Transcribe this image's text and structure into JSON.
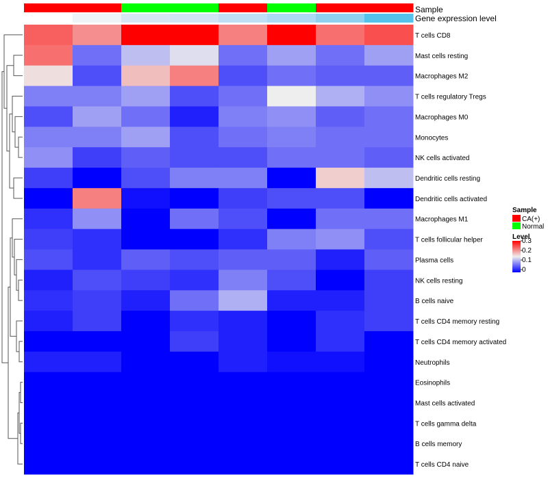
{
  "chart_data": {
    "type": "heatmap",
    "annotation_rows": [
      "Sample",
      "Gene expression level"
    ],
    "sample_groups": [
      "CA(+)",
      "CA(+)",
      "Normal",
      "Normal",
      "CA(+)",
      "Normal",
      "CA(+)",
      "CA(+)"
    ],
    "expression_colors": [
      "#ffffff",
      "#eef3f8",
      "#d6e6f3",
      "#d0e4f4",
      "#bfe0f4",
      "#acdaf4",
      "#8fd0f1",
      "#55c2ec"
    ],
    "rows": [
      "T cells CD8",
      "Mast cells resting",
      "Macrophages M2",
      "T cells regulatory  Tregs",
      "Macrophages M0",
      "Monocytes",
      "NK cells activated",
      "Dendritic cells resting",
      "Dendritic cells activated",
      "Macrophages M1",
      "T cells follicular helper",
      "Plasma cells",
      "NK cells resting",
      "B cells naive",
      "T cells CD4 memory resting",
      "T cells CD4 memory activated",
      "Neutrophils",
      "Eosinophils",
      "Mast cells activated",
      "T cells gamma delta",
      "B cells memory",
      "T cells CD4 naive"
    ],
    "values": [
      [
        0.24,
        0.21,
        0.3,
        0.3,
        0.22,
        0.3,
        0.23,
        0.25
      ],
      [
        0.23,
        0.07,
        0.12,
        0.14,
        0.07,
        0.1,
        0.07,
        0.1
      ],
      [
        0.16,
        0.05,
        0.18,
        0.22,
        0.05,
        0.07,
        0.06,
        0.06
      ],
      [
        0.08,
        0.08,
        0.1,
        0.05,
        0.07,
        0.15,
        0.11,
        0.09
      ],
      [
        0.05,
        0.1,
        0.07,
        0.02,
        0.08,
        0.09,
        0.06,
        0.07
      ],
      [
        0.08,
        0.08,
        0.1,
        0.05,
        0.07,
        0.08,
        0.07,
        0.07
      ],
      [
        0.09,
        0.04,
        0.06,
        0.05,
        0.05,
        0.07,
        0.07,
        0.06
      ],
      [
        0.04,
        0.0,
        0.05,
        0.08,
        0.08,
        0.0,
        0.17,
        0.12
      ],
      [
        0.0,
        0.22,
        0.01,
        0.0,
        0.04,
        0.05,
        0.05,
        0.0
      ],
      [
        0.03,
        0.09,
        0.0,
        0.07,
        0.05,
        0.0,
        0.07,
        0.07
      ],
      [
        0.04,
        0.03,
        0.0,
        0.0,
        0.03,
        0.08,
        0.09,
        0.05
      ],
      [
        0.05,
        0.03,
        0.06,
        0.05,
        0.06,
        0.06,
        0.02,
        0.06
      ],
      [
        0.02,
        0.05,
        0.04,
        0.03,
        0.08,
        0.05,
        0.0,
        0.04
      ],
      [
        0.03,
        0.04,
        0.02,
        0.07,
        0.11,
        0.02,
        0.02,
        0.04
      ],
      [
        0.02,
        0.04,
        0.0,
        0.03,
        0.02,
        0.0,
        0.03,
        0.04
      ],
      [
        0.0,
        0.0,
        0.0,
        0.04,
        0.02,
        0.0,
        0.03,
        0.0
      ],
      [
        0.02,
        0.02,
        0.0,
        0.0,
        0.02,
        0.01,
        0.01,
        0.0
      ],
      [
        0.0,
        0.0,
        0.0,
        0.0,
        0.0,
        0.0,
        0.0,
        0.0
      ],
      [
        0.0,
        0.0,
        0.0,
        0.0,
        0.0,
        0.0,
        0.0,
        0.0
      ],
      [
        0.0,
        0.0,
        0.0,
        0.0,
        0.0,
        0.0,
        0.0,
        0.0
      ],
      [
        0.0,
        0.0,
        0.0,
        0.0,
        0.0,
        0.0,
        0.0,
        0.0
      ],
      [
        0.0,
        0.0,
        0.0,
        0.0,
        0.0,
        0.0,
        0.0,
        0.0
      ]
    ],
    "color_scale": {
      "min": 0,
      "mid": 0.15,
      "max": 0.3,
      "low_color": "#0000ff",
      "mid_color": "#eeeeee",
      "high_color": "#ff0000"
    },
    "legend": {
      "sample_title": "Sample",
      "sample_entries": [
        {
          "label": "CA(+)",
          "color": "#ff0000"
        },
        {
          "label": "Normal",
          "color": "#00ff00"
        }
      ],
      "level_title": "Level",
      "level_ticks": [
        "0.3",
        "0.2",
        "0.1",
        "0"
      ],
      "placement": "right"
    },
    "dendrogram": "rows"
  }
}
